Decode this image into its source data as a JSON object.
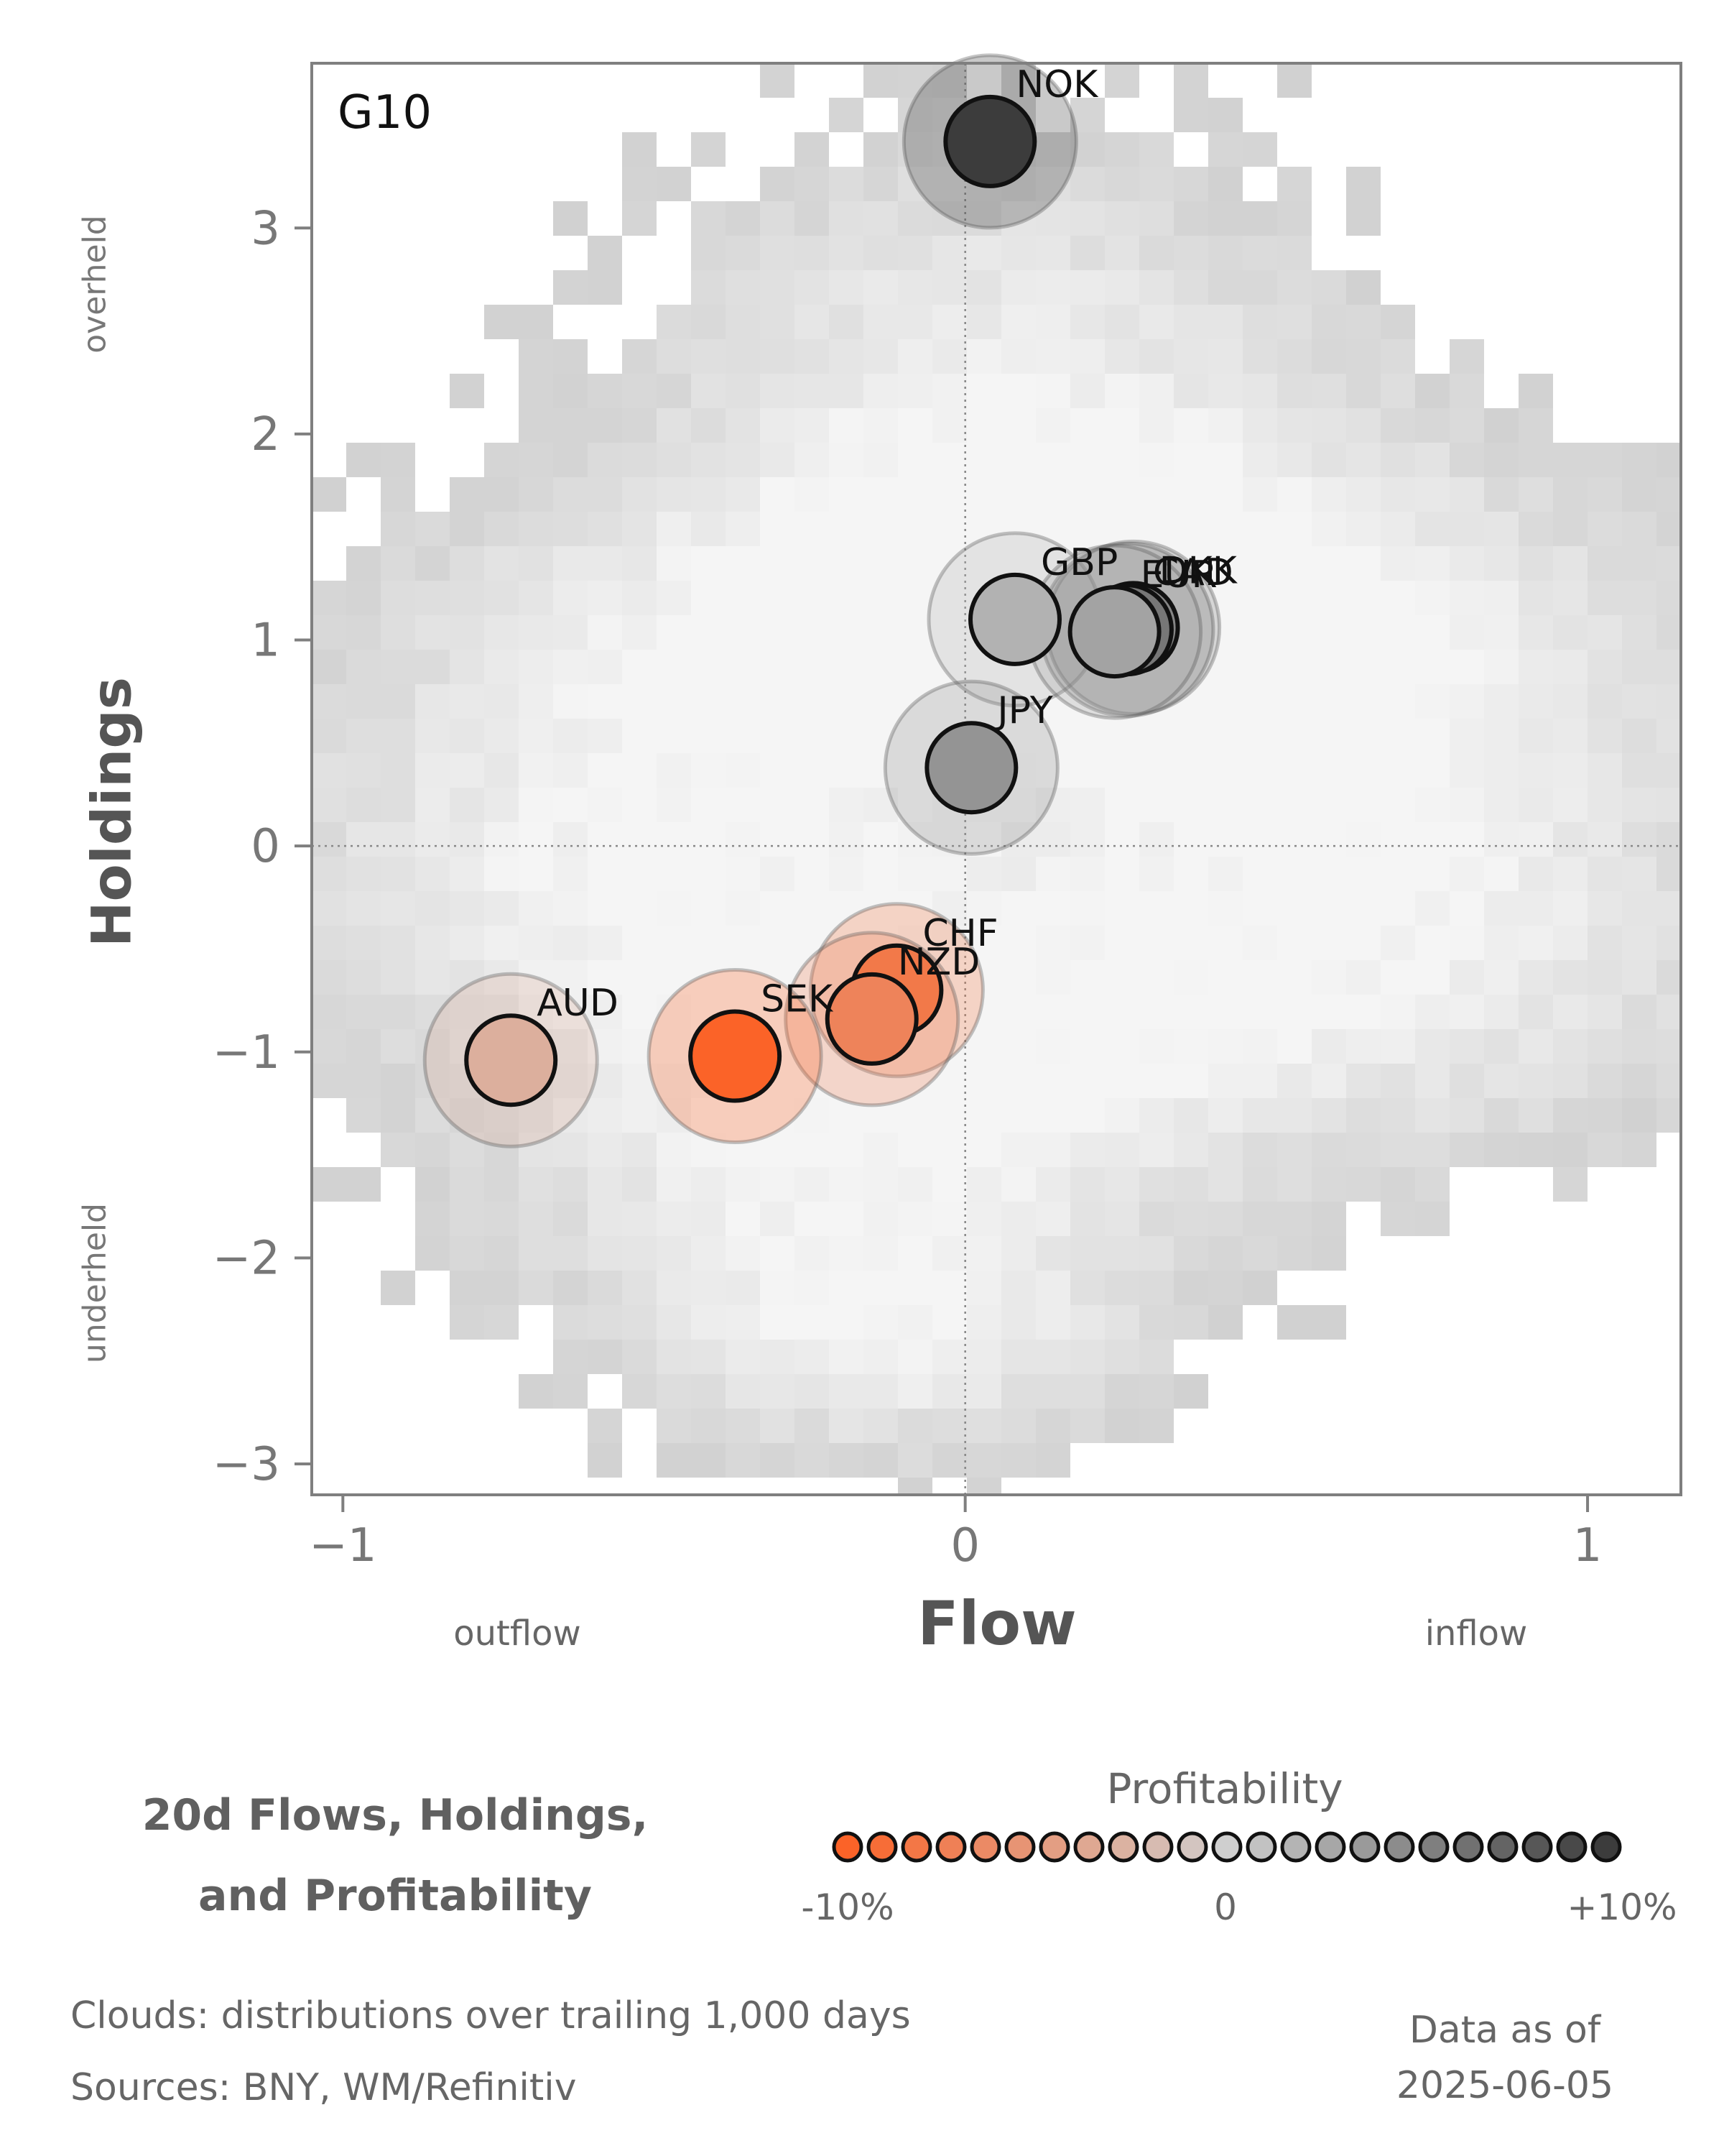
{
  "chart_data": {
    "type": "scatter",
    "panel_label": "G10",
    "xlabel": "Flow",
    "ylabel": "Holdings",
    "x_ticks": [
      "−1",
      "0",
      "1"
    ],
    "y_ticks": [
      "3",
      "2",
      "1",
      "0",
      "−1",
      "−2",
      "−3"
    ],
    "xlim": [
      -1.05,
      1.15
    ],
    "ylim": [
      -3.15,
      3.8
    ],
    "x_side_labels": {
      "left": "outflow",
      "right": "inflow"
    },
    "y_side_labels": {
      "top": "overheld",
      "bottom": "underheld"
    },
    "background": "grey density clouds of trailing 1,000-day distributions",
    "reference_lines": {
      "x": 0,
      "y": 0
    },
    "points": [
      {
        "label": "NOK",
        "x": 0.04,
        "y": 3.42,
        "profitability": 0.1
      },
      {
        "label": "GBP",
        "x": 0.08,
        "y": 1.1,
        "profitability": 0.02
      },
      {
        "label": "DKK",
        "x": 0.27,
        "y": 1.06,
        "profitability": 0.05
      },
      {
        "label": "CAD",
        "x": 0.26,
        "y": 1.05,
        "profitability": 0.06
      },
      {
        "label": "EUR",
        "x": 0.24,
        "y": 1.04,
        "profitability": 0.03
      },
      {
        "label": "JPY",
        "x": 0.01,
        "y": 0.38,
        "profitability": 0.04
      },
      {
        "label": "CHF",
        "x": -0.11,
        "y": -0.7,
        "profitability": -0.08
      },
      {
        "label": "NZD",
        "x": -0.15,
        "y": -0.84,
        "profitability": -0.07
      },
      {
        "label": "SEK",
        "x": -0.37,
        "y": -1.02,
        "profitability": -0.1
      },
      {
        "label": "AUD",
        "x": -0.73,
        "y": -1.04,
        "profitability": -0.03
      }
    ],
    "colorbar": {
      "title": "Profitability",
      "tick_labels": [
        "-10%",
        "0",
        "+10%"
      ],
      "range": [
        -0.1,
        0.1
      ],
      "low_color": "#fb6328",
      "mid_color": "#cfcfcf",
      "high_color": "#3c3c3c"
    }
  },
  "title_lines": [
    "20d Flows, Holdings,",
    "and Profitability"
  ],
  "footnotes": {
    "clouds": "Clouds:  distributions over trailing 1,000 days",
    "sources": "Sources:  BNY, WM/Refinitiv"
  },
  "as_of": {
    "line1": "Data as of",
    "line2": "2025-06-05"
  }
}
